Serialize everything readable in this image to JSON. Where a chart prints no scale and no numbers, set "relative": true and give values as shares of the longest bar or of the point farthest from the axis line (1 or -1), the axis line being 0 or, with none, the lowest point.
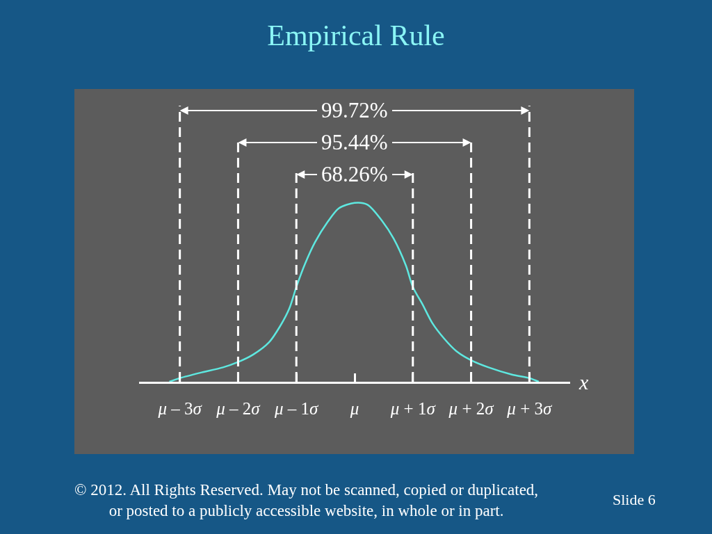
{
  "chart_data": {
    "type": "line",
    "title": "Empirical Rule",
    "xlabel": "x",
    "relative": true,
    "color": "#5ee8e0",
    "marker": "none",
    "line_style": "solid",
    "grid": false,
    "x": [
      -3.18,
      -3.0,
      -2.65,
      -2.26,
      -2.0,
      -1.75,
      -1.47,
      -1.28,
      -1.12,
      -1.0,
      -0.85,
      -0.68,
      -0.47,
      -0.27,
      0.0,
      0.22,
      0.47,
      0.67,
      0.88,
      1.0,
      1.17,
      1.33,
      1.54,
      1.75,
      2.0,
      2.3,
      2.7,
      3.0,
      3.16
    ],
    "values": [
      0,
      0.02,
      0.05,
      0.08,
      0.11,
      0.15,
      0.22,
      0.31,
      0.41,
      0.53,
      0.66,
      0.78,
      0.89,
      0.97,
      1.0,
      0.99,
      0.9,
      0.8,
      0.65,
      0.53,
      0.43,
      0.33,
      0.24,
      0.17,
      0.12,
      0.08,
      0.04,
      0.02,
      0
    ],
    "xlim": [
      -3.7,
      3.7
    ],
    "xticks": [
      {
        "value": -3,
        "label": "μ – 3σ"
      },
      {
        "value": -2,
        "label": "μ – 2σ"
      },
      {
        "value": -1,
        "label": "μ – 1σ"
      },
      {
        "value": 0,
        "label": "μ"
      },
      {
        "value": 1,
        "label": "μ + 1σ"
      },
      {
        "value": 2,
        "label": "μ + 2σ"
      },
      {
        "value": 3,
        "label": "μ + 3σ"
      }
    ],
    "ref_lines": [
      {
        "axis": "x",
        "value": -3,
        "color": "#ffffff",
        "line_style": "dashed"
      },
      {
        "axis": "x",
        "value": -2,
        "color": "#ffffff",
        "line_style": "dashed"
      },
      {
        "axis": "x",
        "value": -1,
        "color": "#ffffff",
        "line_style": "dashed"
      },
      {
        "axis": "x",
        "value": 1,
        "color": "#ffffff",
        "line_style": "dashed"
      },
      {
        "axis": "x",
        "value": 2,
        "color": "#ffffff",
        "line_style": "dashed"
      },
      {
        "axis": "x",
        "value": 3,
        "color": "#ffffff",
        "line_style": "dashed"
      }
    ],
    "annotations": [
      "99.72%",
      "95.44%",
      "68.26%",
      "© 2012. All Rights Reserved. May not be scanned, copied or duplicated, or posted to a publicly accessible website, in whole or in part.",
      "Slide 6"
    ]
  }
}
